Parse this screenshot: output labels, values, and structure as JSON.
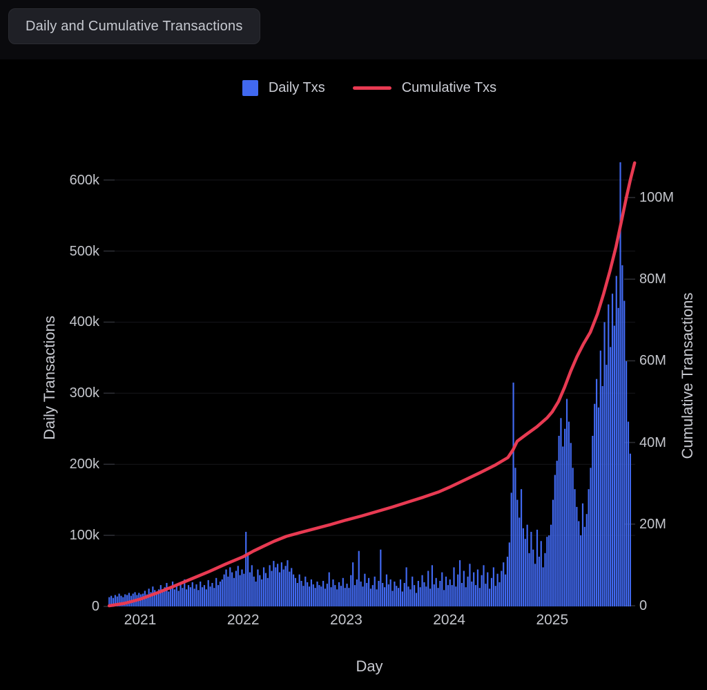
{
  "header": {
    "title": "Daily and Cumulative Transactions"
  },
  "legend": {
    "items": [
      {
        "label": "Daily Txs",
        "swatch": "square",
        "color": "#4169f0"
      },
      {
        "label": "Cumulative Txs",
        "swatch": "line",
        "color": "#e83a52"
      }
    ]
  },
  "colors": {
    "background": "#000000",
    "header_bar": "#0a0a0d",
    "bar_blue": "#4169f0",
    "line_red": "#e83a52",
    "grid": "#17171b",
    "tick_mark": "#2c2d33",
    "text": "#c4c6cc"
  },
  "chart_data": {
    "type": "combo",
    "title": "Daily and Cumulative Transactions",
    "xlabel": "Day",
    "x_axis": {
      "tick_labels": [
        "2021",
        "2022",
        "2023",
        "2024",
        "2025"
      ],
      "tick_years": [
        2021,
        2022,
        2023,
        2024,
        2025
      ],
      "range_years": [
        2020.65,
        2025.82
      ]
    },
    "y_left": {
      "label": "Daily Transactions",
      "tick_labels": [
        "0",
        "100k",
        "200k",
        "300k",
        "400k",
        "500k",
        "600k"
      ],
      "tick_values": [
        0,
        100000,
        200000,
        300000,
        400000,
        500000,
        600000
      ],
      "range": [
        0,
        650000
      ]
    },
    "y_right": {
      "label": "Cumulative Transactions",
      "tick_labels": [
        "0",
        "20M",
        "40M",
        "60M",
        "80M",
        "100M"
      ],
      "tick_values": [
        0,
        20000000,
        40000000,
        60000000,
        80000000,
        100000000
      ],
      "range": [
        0,
        113000000
      ]
    },
    "grid": {
      "horizontal": true,
      "vertical": false
    },
    "legend_position": "top-center",
    "series": [
      {
        "name": "Daily Txs",
        "type": "bar",
        "axis": "left",
        "color": "#4169f0",
        "unit": "transactions per day",
        "sampling": "weekly estimates read from daily bars",
        "start_year": 2020.7,
        "step_years": 0.019231,
        "values_scale": 1000,
        "values": [
          13,
          15,
          12,
          16,
          14,
          18,
          15,
          13,
          17,
          16,
          19,
          15,
          18,
          20,
          16,
          19,
          17,
          18,
          22,
          17,
          25,
          20,
          28,
          23,
          19,
          24,
          30,
          22,
          27,
          33,
          21,
          26,
          35,
          24,
          29,
          22,
          32,
          26,
          38,
          24,
          30,
          27,
          34,
          25,
          31,
          23,
          35,
          27,
          30,
          24,
          37,
          28,
          33,
          26,
          40,
          30,
          35,
          38,
          45,
          52,
          42,
          55,
          48,
          40,
          50,
          57,
          44,
          52,
          46,
          105,
          76,
          48,
          58,
          42,
          35,
          52,
          44,
          38,
          55,
          47,
          40,
          58,
          50,
          64,
          55,
          60,
          48,
          62,
          52,
          57,
          65,
          49,
          54,
          45,
          40,
          33,
          45,
          36,
          29,
          42,
          34,
          28,
          38,
          31,
          26,
          35,
          30,
          28,
          36,
          25,
          32,
          48,
          27,
          38,
          30,
          24,
          34,
          29,
          40,
          26,
          32,
          26,
          44,
          62,
          30,
          38,
          78,
          35,
          28,
          46,
          33,
          40,
          25,
          30,
          42,
          24,
          36,
          80,
          33,
          27,
          45,
          31,
          38,
          22,
          35,
          29,
          26,
          38,
          21,
          33,
          55,
          28,
          24,
          42,
          30,
          19,
          36,
          27,
          44,
          34,
          28,
          50,
          25,
          58,
          31,
          40,
          26,
          36,
          48,
          23,
          42,
          30,
          38,
          30,
          55,
          28,
          45,
          65,
          33,
          50,
          27,
          42,
          60,
          35,
          48,
          30,
          52,
          26,
          44,
          58,
          32,
          48,
          25,
          40,
          55,
          29,
          46,
          34,
          50,
          62,
          45,
          70,
          90,
          160,
          315,
          195,
          150,
          125,
          165,
          110,
          95,
          115,
          75,
          105,
          80,
          60,
          108,
          70,
          92,
          55,
          75,
          98,
          100,
          115,
          150,
          185,
          205,
          240,
          265,
          225,
          250,
          292,
          260,
          230,
          195,
          165,
          140,
          120,
          100,
          145,
          112,
          130,
          165,
          195,
          240,
          285,
          320,
          280,
          360,
          310,
          400,
          340,
          425,
          365,
          440,
          395,
          465,
          420,
          625,
          480,
          430,
          345,
          260,
          215
        ]
      },
      {
        "name": "Cumulative Txs",
        "type": "line",
        "axis": "right",
        "color": "#e83a52",
        "unit": "transactions (cumulative)",
        "values_scale": 1000000,
        "points": [
          [
            2020.7,
            0
          ],
          [
            2020.85,
            0.6
          ],
          [
            2021.0,
            1.6
          ],
          [
            2021.17,
            3.2
          ],
          [
            2021.33,
            4.8
          ],
          [
            2021.5,
            6.6
          ],
          [
            2021.67,
            8.4
          ],
          [
            2021.83,
            10.2
          ],
          [
            2022.0,
            12
          ],
          [
            2022.1,
            13.4
          ],
          [
            2022.2,
            14.6
          ],
          [
            2022.3,
            15.8
          ],
          [
            2022.42,
            17.0
          ],
          [
            2022.55,
            17.9
          ],
          [
            2022.7,
            18.9
          ],
          [
            2022.85,
            19.9
          ],
          [
            2023.0,
            21
          ],
          [
            2023.15,
            22
          ],
          [
            2023.3,
            23.1
          ],
          [
            2023.45,
            24.2
          ],
          [
            2023.6,
            25.4
          ],
          [
            2023.75,
            26.6
          ],
          [
            2023.9,
            27.9
          ],
          [
            2024.0,
            29
          ],
          [
            2024.15,
            30.8
          ],
          [
            2024.3,
            32.6
          ],
          [
            2024.45,
            34.5
          ],
          [
            2024.57,
            36.3
          ],
          [
            2024.62,
            38.2
          ],
          [
            2024.66,
            40.3
          ],
          [
            2024.75,
            42
          ],
          [
            2024.85,
            43.8
          ],
          [
            2024.95,
            46
          ],
          [
            2025.0,
            47.5
          ],
          [
            2025.06,
            50
          ],
          [
            2025.12,
            53.5
          ],
          [
            2025.18,
            57.5
          ],
          [
            2025.24,
            61
          ],
          [
            2025.3,
            64
          ],
          [
            2025.37,
            67
          ],
          [
            2025.44,
            71.5
          ],
          [
            2025.5,
            76.5
          ],
          [
            2025.56,
            82
          ],
          [
            2025.62,
            88
          ],
          [
            2025.67,
            94
          ],
          [
            2025.72,
            100
          ],
          [
            2025.76,
            104.5
          ],
          [
            2025.8,
            108.5
          ]
        ]
      }
    ]
  }
}
